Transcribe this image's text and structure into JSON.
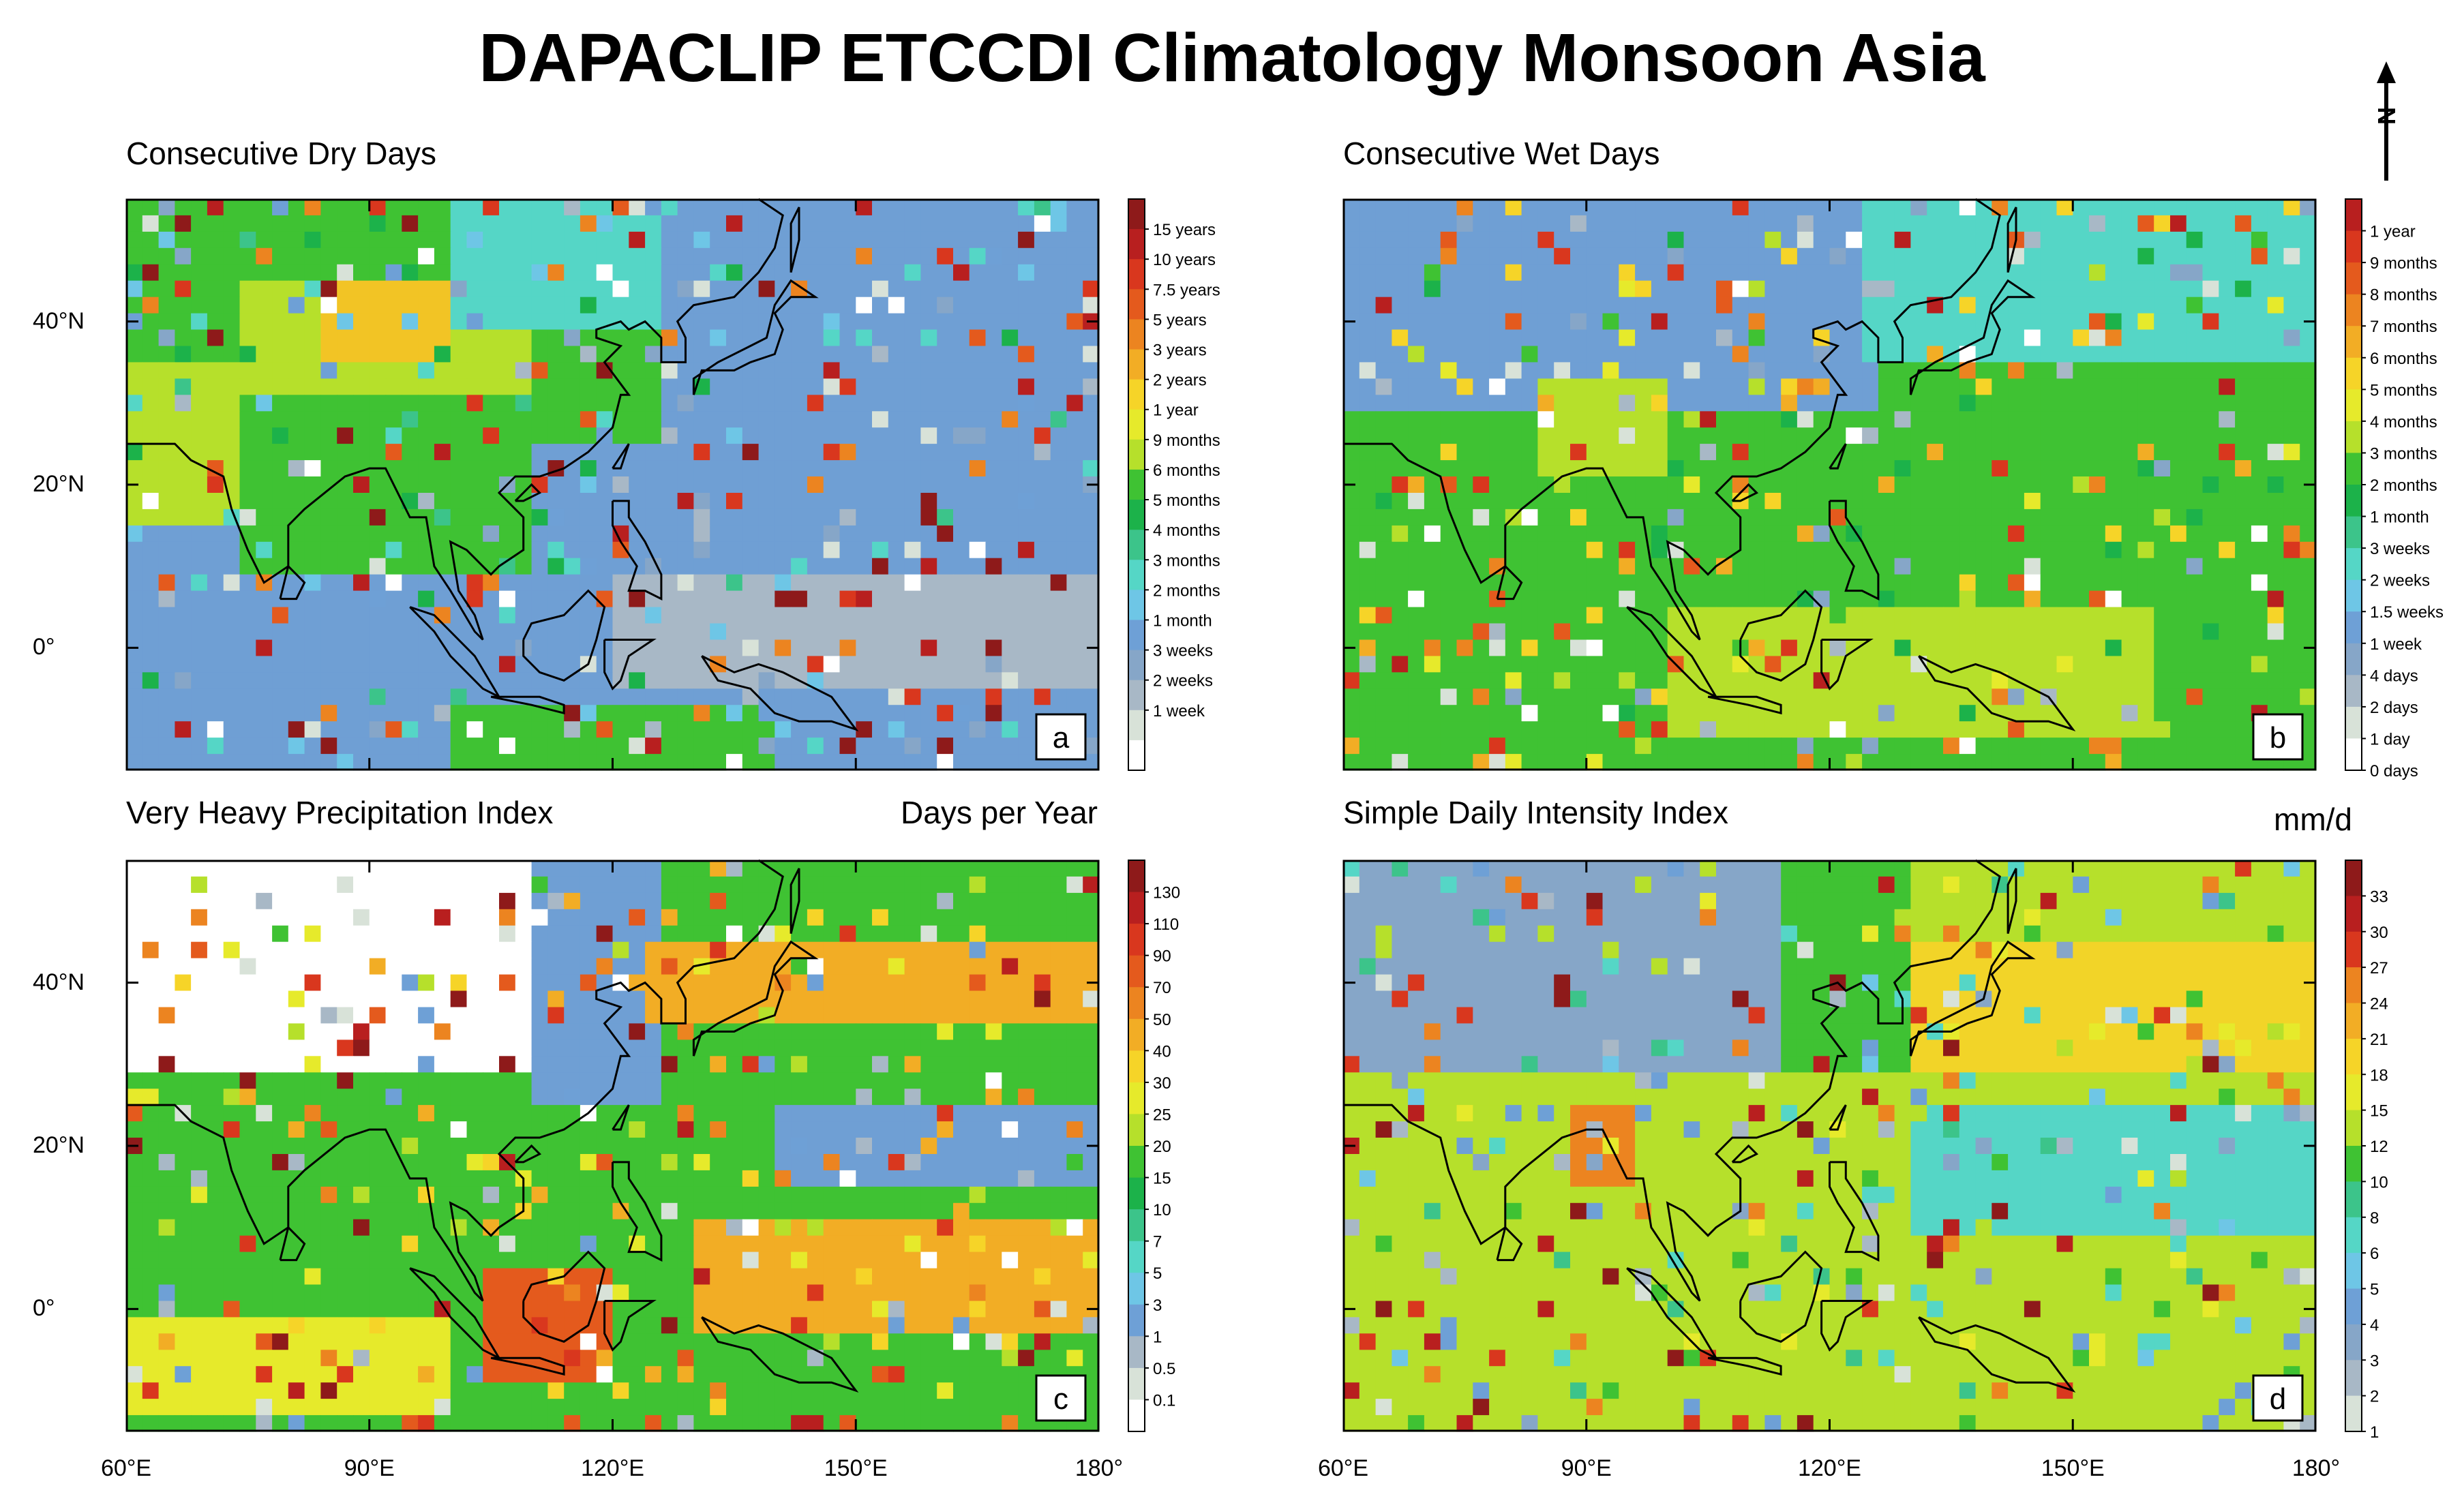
{
  "title": "DAPACLIP ETCCDI Climatology Monsoon Asia",
  "north_arrow": {
    "label": "N",
    "icon": "north-arrow-icon"
  },
  "axes": {
    "lat_ticks": [
      "40°N",
      "20°N",
      "0°"
    ],
    "lon_ticks": [
      "60°E",
      "90°E",
      "120°E",
      "150°E",
      "180°"
    ]
  },
  "panels": [
    {
      "id": "a",
      "title": "Consecutive Dry Days",
      "units": "",
      "letter": "a",
      "colorbar": {
        "labels": [
          "15 years",
          "10 years",
          "7.5 years",
          "5 years",
          "3 years",
          "2 years",
          "1 year",
          "9 months",
          "6 months",
          "5 months",
          "4 months",
          "3 months",
          "2 months",
          "1 month",
          "3 weeks",
          "2 weeks",
          "1 week"
        ],
        "colors": [
          "#8e1a1a",
          "#b81f1f",
          "#d9371e",
          "#e45a1d",
          "#ec8420",
          "#f2ad25",
          "#f6d428",
          "#e6ea2b",
          "#b6e02b",
          "#3fc233",
          "#1cb24a",
          "#3cc48a",
          "#55d6c6",
          "#6ec6e6",
          "#6ea0d6",
          "#86a6c8",
          "#a8b8c6",
          "#d8e2d8",
          "#ffffff"
        ]
      },
      "zones": [
        {
          "lat": [
            -15,
            55
          ],
          "lon": [
            60,
            180
          ],
          "color": "#6f9fd4"
        },
        {
          "lat": [
            25,
            55
          ],
          "lon": [
            60,
            125
          ],
          "color": "#3fc233"
        },
        {
          "lat": [
            30,
            45
          ],
          "lon": [
            75,
            110
          ],
          "color": "#b6e02b"
        },
        {
          "lat": [
            35,
            45
          ],
          "lon": [
            85,
            100
          ],
          "color": "#f2c425"
        },
        {
          "lat": [
            15,
            35
          ],
          "lon": [
            60,
            75
          ],
          "color": "#b6e02b"
        },
        {
          "lat": [
            10,
            30
          ],
          "lon": [
            75,
            110
          ],
          "color": "#3fc233"
        },
        {
          "lat": [
            40,
            55
          ],
          "lon": [
            100,
            125
          ],
          "color": "#55d6c6"
        },
        {
          "lat": [
            -5,
            8
          ],
          "lon": [
            120,
            180
          ],
          "color": "#a8b8c6"
        },
        {
          "lat": [
            -15,
            -8
          ],
          "lon": [
            100,
            140
          ],
          "color": "#3fc233"
        }
      ]
    },
    {
      "id": "b",
      "title": "Consecutive Wet Days",
      "units": "",
      "letter": "b",
      "colorbar": {
        "labels": [
          "1 year",
          "9 months",
          "8 months",
          "7 months",
          "6 months",
          "5 months",
          "4 months",
          "3 months",
          "2 months",
          "1 month",
          "3 weeks",
          "2 weeks",
          "1.5 weeks",
          "1 week",
          "4 days",
          "2 days",
          "1 day",
          "0 days"
        ],
        "colors": [
          "#b81f1f",
          "#d9371e",
          "#e45a1d",
          "#ec8420",
          "#f2ad25",
          "#f6d428",
          "#e6ea2b",
          "#b6e02b",
          "#3fc233",
          "#1cb24a",
          "#3cc48a",
          "#55d6c6",
          "#6ec6e6",
          "#6ea0d6",
          "#86a6c8",
          "#a8b8c6",
          "#d8e2d8",
          "#ffffff"
        ]
      },
      "zones": [
        {
          "lat": [
            -15,
            55
          ],
          "lon": [
            60,
            180
          ],
          "color": "#3fc233"
        },
        {
          "lat": [
            30,
            55
          ],
          "lon": [
            60,
            125
          ],
          "color": "#6f9fd4"
        },
        {
          "lat": [
            35,
            55
          ],
          "lon": [
            125,
            180
          ],
          "color": "#55d6c6"
        },
        {
          "lat": [
            22,
            32
          ],
          "lon": [
            85,
            100
          ],
          "color": "#b6e02b"
        },
        {
          "lat": [
            -10,
            5
          ],
          "lon": [
            100,
            160
          ],
          "color": "#b6e02b"
        }
      ]
    },
    {
      "id": "c",
      "title": "Very Heavy Precipitation Index",
      "units": "Days per Year",
      "letter": "c",
      "colorbar": {
        "labels": [
          "130",
          "110",
          "90",
          "70",
          "50",
          "40",
          "30",
          "25",
          "20",
          "15",
          "10",
          "7",
          "5",
          "3",
          "1",
          "0.5",
          "0.1"
        ],
        "colors": [
          "#8e1a1a",
          "#b81f1f",
          "#d9371e",
          "#e45a1d",
          "#ec8420",
          "#f2ad25",
          "#f6d428",
          "#e6ea2b",
          "#b6e02b",
          "#3fc233",
          "#1cb24a",
          "#3cc48a",
          "#55d6c6",
          "#6ec6e6",
          "#6ea0d6",
          "#a8b8c6",
          "#d8e2d8",
          "#ffffff"
        ]
      },
      "zones": [
        {
          "lat": [
            -15,
            55
          ],
          "lon": [
            60,
            180
          ],
          "color": "#3fc233"
        },
        {
          "lat": [
            30,
            55
          ],
          "lon": [
            60,
            110
          ],
          "color": "#ffffff"
        },
        {
          "lat": [
            25,
            55
          ],
          "lon": [
            110,
            125
          ],
          "color": "#6f9fd4"
        },
        {
          "lat": [
            35,
            45
          ],
          "lon": [
            125,
            180
          ],
          "color": "#f2ad25"
        },
        {
          "lat": [
            15,
            25
          ],
          "lon": [
            140,
            180
          ],
          "color": "#6f9fd4"
        },
        {
          "lat": [
            -2,
            10
          ],
          "lon": [
            130,
            180
          ],
          "color": "#f2ad25"
        },
        {
          "lat": [
            -12,
            -2
          ],
          "lon": [
            60,
            100
          ],
          "color": "#e6ea2b"
        },
        {
          "lat": [
            -8,
            5
          ],
          "lon": [
            105,
            120
          ],
          "color": "#e45a1d"
        }
      ]
    },
    {
      "id": "d",
      "title": "Simple Daily Intensity Index",
      "units": "mm/d",
      "letter": "d",
      "colorbar": {
        "labels": [
          "33",
          "30",
          "27",
          "24",
          "21",
          "18",
          "15",
          "12",
          "10",
          "8",
          "6",
          "5",
          "4",
          "3",
          "2",
          "1"
        ],
        "colors": [
          "#8e1a1a",
          "#b81f1f",
          "#d9371e",
          "#ec8420",
          "#f2ad25",
          "#f6d428",
          "#e6ea2b",
          "#b6e02b",
          "#3fc233",
          "#3cc48a",
          "#55d6c6",
          "#6ec6e6",
          "#6ea0d6",
          "#86a6c8",
          "#a8b8c6",
          "#d8e2d8"
        ]
      },
      "zones": [
        {
          "lat": [
            -15,
            55
          ],
          "lon": [
            60,
            180
          ],
          "color": "#b6e02b"
        },
        {
          "lat": [
            30,
            55
          ],
          "lon": [
            60,
            115
          ],
          "color": "#86a6c8"
        },
        {
          "lat": [
            30,
            55
          ],
          "lon": [
            115,
            130
          ],
          "color": "#3fc233"
        },
        {
          "lat": [
            30,
            45
          ],
          "lon": [
            130,
            180
          ],
          "color": "#f2d428"
        },
        {
          "lat": [
            10,
            25
          ],
          "lon": [
            130,
            180
          ],
          "color": "#55d6c6"
        },
        {
          "lat": [
            15,
            25
          ],
          "lon": [
            88,
            95
          ],
          "color": "#ec8420"
        }
      ]
    }
  ]
}
